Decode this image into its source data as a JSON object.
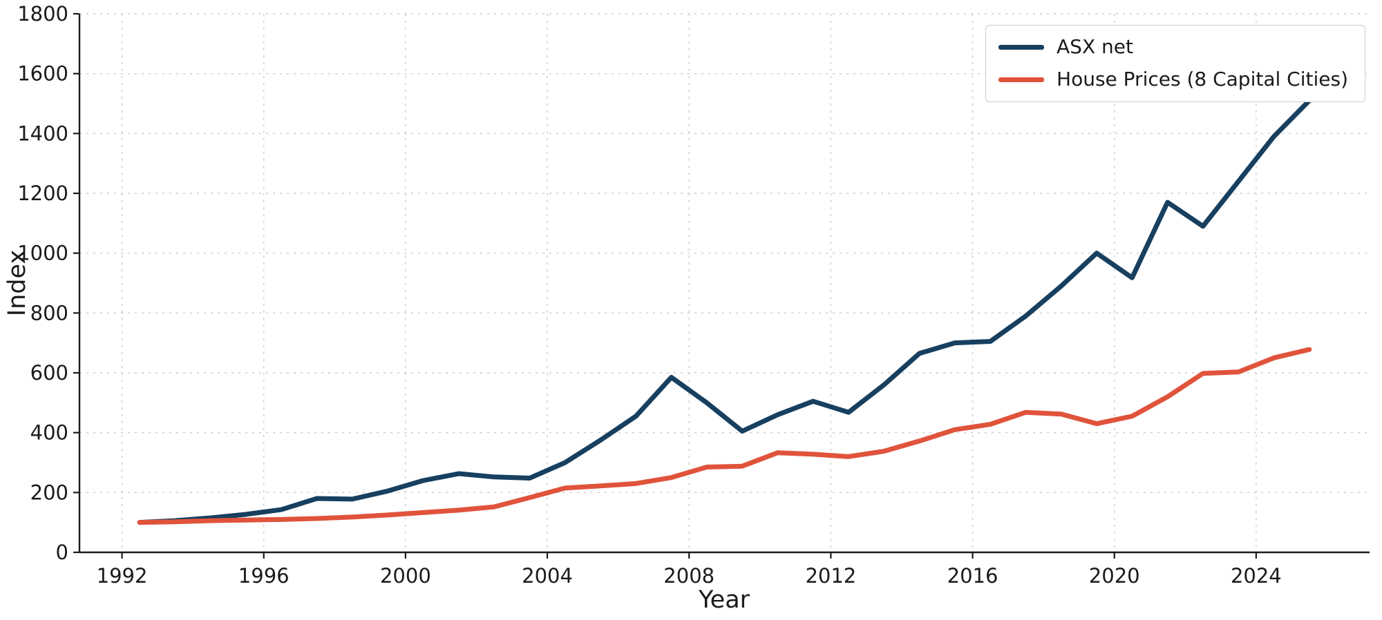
{
  "chart_data": {
    "type": "line",
    "title": "",
    "xlabel": "Year",
    "ylabel": "Index",
    "xlim": [
      1990.8,
      2027.2
    ],
    "ylim": [
      0,
      1800
    ],
    "xticks": [
      1992,
      1996,
      2000,
      2004,
      2008,
      2012,
      2016,
      2020,
      2024
    ],
    "yticks": [
      0,
      200,
      400,
      600,
      800,
      1000,
      1200,
      1400,
      1600,
      1800
    ],
    "grid": true,
    "grid_style": "dashed",
    "legend_position": "top-right",
    "x": [
      1992.5,
      1993.5,
      1994.5,
      1995.5,
      1996.5,
      1997.5,
      1998.5,
      1999.5,
      2000.5,
      2001.5,
      2002.5,
      2003.5,
      2004.5,
      2005.5,
      2006.5,
      2007.5,
      2008.5,
      2009.5,
      2010.5,
      2011.5,
      2012.5,
      2013.5,
      2014.5,
      2015.5,
      2016.5,
      2017.5,
      2018.5,
      2019.5,
      2020.5,
      2021.5,
      2022.5,
      2023.5,
      2024.5,
      2025.5
    ],
    "series": [
      {
        "name": "ASX net",
        "color": "#173f5f",
        "values": [
          100,
          106,
          115,
          127,
          143,
          180,
          178,
          205,
          240,
          263,
          252,
          248,
          300,
          375,
          455,
          585,
          500,
          405,
          460,
          505,
          468,
          560,
          665,
          700,
          705,
          790,
          890,
          1000,
          918,
          1170,
          1090,
          1240,
          1390,
          1510
        ]
      },
      {
        "name": "House Prices (8 Capital Cities)",
        "color": "#e0533b",
        "values": [
          100,
          102,
          106,
          108,
          110,
          113,
          118,
          125,
          133,
          141,
          152,
          183,
          215,
          222,
          230,
          250,
          285,
          288,
          333,
          328,
          320,
          338,
          372,
          410,
          428,
          468,
          462,
          430,
          455,
          520,
          598,
          603,
          650,
          678
        ]
      }
    ]
  }
}
